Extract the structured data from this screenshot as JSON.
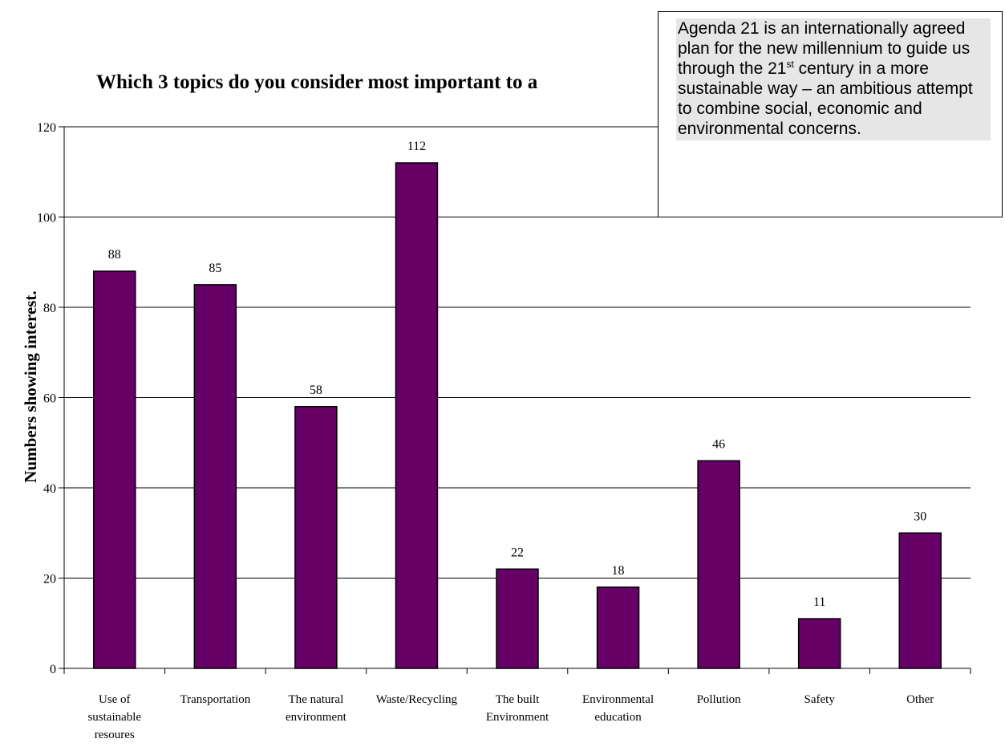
{
  "chart_data": {
    "type": "bar",
    "title": "Which 3 topics do you consider most important to a",
    "ylabel": "Numbers showing interest.",
    "xlabel": "",
    "ylim": [
      0,
      120
    ],
    "yticks": [
      0,
      20,
      40,
      60,
      80,
      100,
      120
    ],
    "grid": true,
    "bar_color": "#660066",
    "categories": [
      [
        "Use of",
        "sustainable",
        "resoures"
      ],
      [
        "Transportation"
      ],
      [
        "The natural",
        "environment"
      ],
      [
        "Waste/Recycling"
      ],
      [
        "The built",
        "Environment"
      ],
      [
        "Environmental",
        "education"
      ],
      [
        "Pollution"
      ],
      [
        "Safety"
      ],
      [
        "Other"
      ]
    ],
    "values": [
      88,
      85,
      58,
      112,
      22,
      18,
      46,
      11,
      30
    ]
  },
  "note": {
    "before_sup": "Agenda 21 is an internationally agreed plan for the new millennium to guide us through the 21",
    "sup": "st",
    "after_sup": " century in a more sustainable way – an ambitious attempt to combine social, economic and environmental concerns."
  }
}
